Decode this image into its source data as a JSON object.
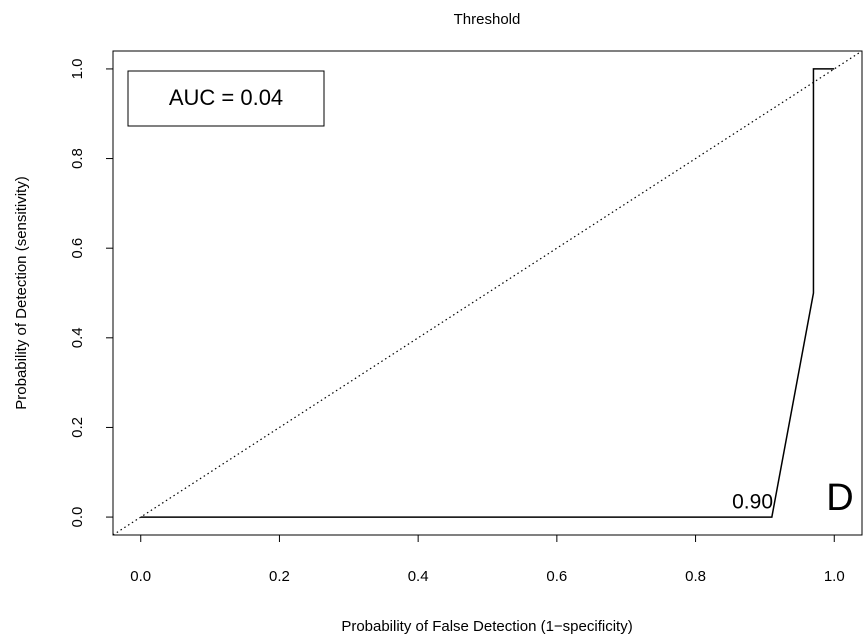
{
  "chart_data": {
    "type": "line",
    "title": "Threshold",
    "xlabel": "Probability of False Detection (1−specificity)",
    "ylabel": "Probability of Detection (sensitivity)",
    "x": [
      0,
      0.91,
      0.97,
      0.97,
      1.0
    ],
    "values": [
      0,
      0,
      0.5,
      1.0,
      1.0
    ],
    "color": "#000000",
    "xlim": [
      -0.04,
      1.04
    ],
    "ylim": [
      -0.04,
      1.04
    ],
    "xticks": [
      {
        "value": 0,
        "label": "0.0"
      },
      0.2,
      0.4,
      0.6,
      0.8,
      {
        "value": 1,
        "label": "1.0"
      }
    ],
    "yticks": [
      {
        "value": 0,
        "label": "0.0"
      },
      0.2,
      0.4,
      0.6,
      0.8,
      {
        "value": 1,
        "label": "1.0"
      }
    ],
    "annotations": {
      "auc": "AUC = 0.04",
      "threshold": "0.90",
      "panel": "D"
    }
  }
}
